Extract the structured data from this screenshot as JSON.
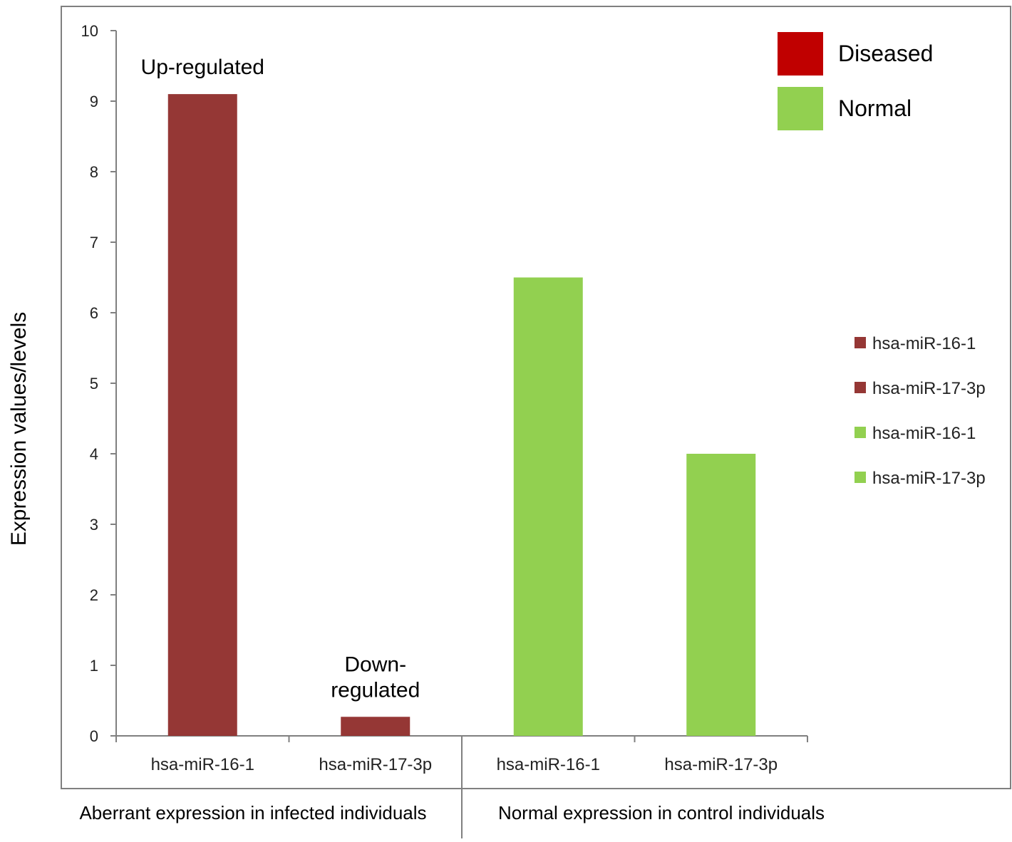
{
  "chart_data": {
    "type": "bar",
    "ylabel": "Expression values/levels",
    "ylim": [
      0,
      10
    ],
    "yticks": [
      "0",
      "1",
      "2",
      "3",
      "4",
      "5",
      "6",
      "7",
      "8",
      "9",
      "10"
    ],
    "grid": false,
    "bars": [
      {
        "category": "hsa-miR-16-1",
        "value": 9.1,
        "group": "Diseased",
        "color": "#953735"
      },
      {
        "category": "hsa-miR-17-3p",
        "value": 0.27,
        "group": "Diseased",
        "color": "#953735"
      },
      {
        "category": "hsa-miR-16-1",
        "value": 6.5,
        "group": "Normal",
        "color": "#92d050"
      },
      {
        "category": "hsa-miR-17-3p",
        "value": 4.0,
        "group": "Normal",
        "color": "#92d050"
      }
    ],
    "group_labels": [
      "Aberrant expression in infected individuals",
      "Normal expression in control individuals"
    ],
    "annotations": [
      {
        "bar_index": 0,
        "lines": [
          "Up-regulated"
        ]
      },
      {
        "bar_index": 1,
        "lines": [
          "Down-",
          "regulated"
        ]
      }
    ],
    "legend_groups": [
      {
        "label": "Diseased",
        "color": "#c00000"
      },
      {
        "label": "Normal",
        "color": "#92d050"
      }
    ],
    "legend_series": [
      {
        "label": "hsa-miR-16-1",
        "color": "#953735"
      },
      {
        "label": "hsa-miR-17-3p",
        "color": "#953735"
      },
      {
        "label": "hsa-miR-16-1",
        "color": "#92d050"
      },
      {
        "label": "hsa-miR-17-3p",
        "color": "#92d050"
      }
    ],
    "legend_placement": "right"
  }
}
